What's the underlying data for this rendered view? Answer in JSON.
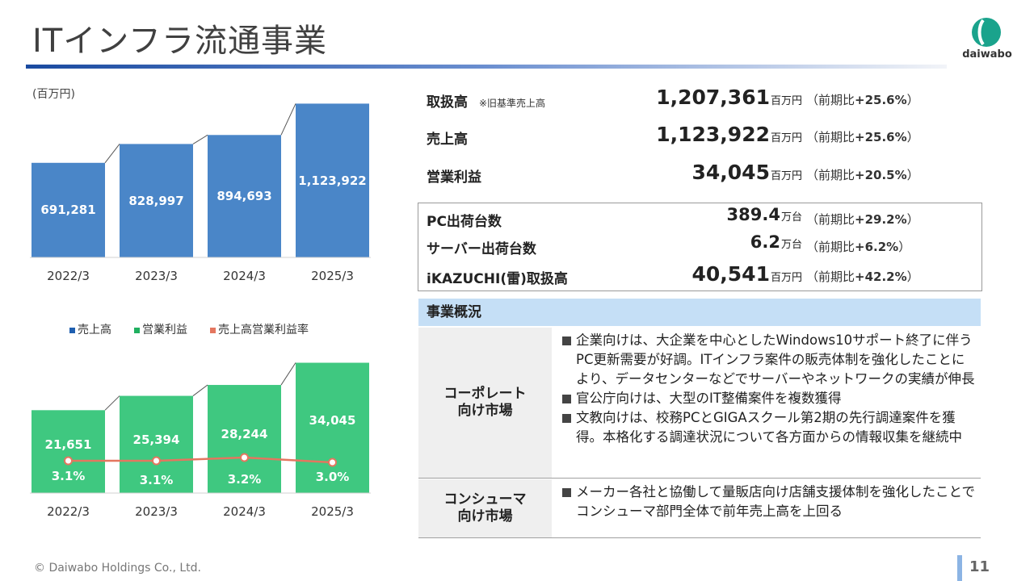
{
  "title": "ITインフラ流通事業",
  "logo_text": "daiwabo",
  "colors": {
    "sales_bar": "#4a86c8",
    "profit_bar": "#3fc880",
    "margin_line": "#e4765f",
    "title_bar_start": "#1a4aa0",
    "overview_header": "#c5dff6"
  },
  "chart_data": [
    {
      "type": "bar",
      "unit_label": "(百万円)",
      "categories": [
        "2022/3",
        "2023/3",
        "2024/3",
        "2025/3"
      ],
      "series": [
        {
          "name": "売上高",
          "values": [
            691281,
            828997,
            894693,
            1123922
          ]
        }
      ],
      "value_labels": [
        "691,281",
        "828,997",
        "894,693",
        "1,123,922"
      ],
      "ylim": [
        0,
        1150000
      ]
    },
    {
      "type": "bar",
      "categories": [
        "2022/3",
        "2023/3",
        "2024/3",
        "2025/3"
      ],
      "series": [
        {
          "name": "営業利益",
          "values": [
            21651,
            25394,
            28244,
            34045
          ]
        },
        {
          "name": "売上高営業利益率",
          "values": [
            3.1,
            3.1,
            3.2,
            3.0
          ]
        }
      ],
      "value_labels": [
        "21,651",
        "25,394",
        "28,244",
        "34,045"
      ],
      "margin_labels": [
        "3.1%",
        "3.1%",
        "3.2%",
        "3.0%"
      ],
      "ylim": [
        0,
        35000
      ]
    }
  ],
  "legend": [
    "売上高",
    "営業利益",
    "売上高営業利益率"
  ],
  "kpis": [
    {
      "label": "取扱高",
      "note": "※旧基準売上高",
      "value": "1,207,361",
      "unit": "百万円",
      "growth_prefix": "（前期比",
      "growth": "+25.6%",
      "growth_suffix": "）"
    },
    {
      "label": "売上高",
      "note": "",
      "value": "1,123,922",
      "unit": "百万円",
      "growth_prefix": "（前期比",
      "growth": "+25.6%",
      "growth_suffix": "）"
    },
    {
      "label": "営業利益",
      "note": "",
      "value": "34,045",
      "unit": "百万円",
      "growth_prefix": "（前期比",
      "growth": "+20.5%",
      "growth_suffix": "）"
    },
    {
      "label": "PC出荷台数",
      "note": "",
      "value": "389.4",
      "unit": "万台",
      "growth_prefix": "（前期比",
      "growth": "+29.2%",
      "growth_suffix": "）"
    },
    {
      "label": "サーバー出荷台数",
      "note": "",
      "value": "6.2",
      "unit": "万台",
      "growth_prefix": "（前期比",
      "growth": "+6.2%",
      "growth_suffix": "）"
    },
    {
      "label": "iKAZUCHI(雷)取扱高",
      "note": "",
      "value": "40,541",
      "unit": "百万円",
      "growth_prefix": "（前期比",
      "growth": "+42.2%",
      "growth_suffix": "）"
    }
  ],
  "overview": {
    "header": "事業概況",
    "rows": [
      {
        "label_line1": "コーポレート",
        "label_line2": "向け市場",
        "items": [
          "企業向けは、大企業を中心としたWindows10サポート終了に伴うPC更新需要が好調。ITインフラ案件の販売体制を強化したことにより、データセンターなどでサーバーやネットワークの実績が伸長",
          "官公庁向けは、大型のIT整備案件を複数獲得",
          "文教向けは、校務PCとGIGAスクール第2期の先行調達案件を獲得。本格化する調達状況について各方面からの情報収集を継続中"
        ]
      },
      {
        "label_line1": "コンシューマ",
        "label_line2": "向け市場",
        "items": [
          "メーカー各社と協働して量販店向け店舗支援体制を強化したことでコンシューマ部門全体で前年売上高を上回る"
        ]
      }
    ]
  },
  "footer": {
    "copyright": "© Daiwabo Holdings Co., Ltd.",
    "page": "11"
  }
}
